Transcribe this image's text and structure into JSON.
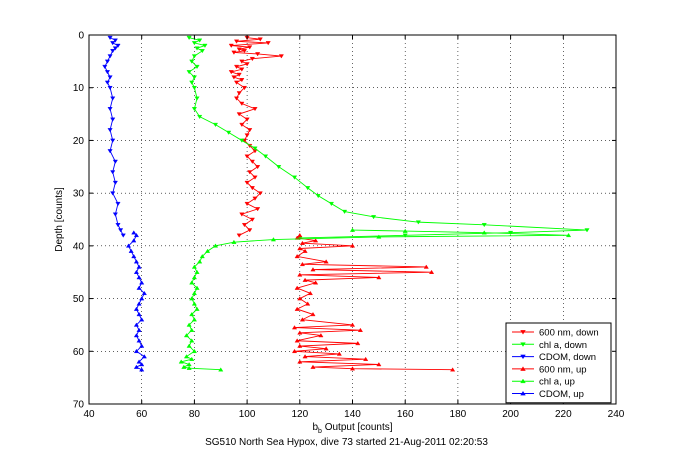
{
  "chart_data": {
    "type": "line",
    "title": "",
    "xlabel": "b",
    "xlabel_subscript": "b",
    "xlabel_suffix": " Output [counts]",
    "ylabel": "Depth [counts]",
    "caption": "SG510 North Sea Hypox, dive 73 started 21-Aug-2011 02:20:53",
    "xlim": [
      40,
      240
    ],
    "ylim": [
      0,
      70
    ],
    "y_reversed": true,
    "xticks": [
      40,
      60,
      80,
      100,
      120,
      140,
      160,
      180,
      200,
      220,
      240
    ],
    "yticks": [
      0,
      10,
      20,
      30,
      40,
      50,
      60,
      70
    ],
    "grid": "dotted",
    "legend_position": "bottom-right",
    "series": [
      {
        "name": "600 nm, down",
        "color": "#ff0000",
        "marker": "down",
        "points": [
          [
            100,
            0.5
          ],
          [
            105,
            0.8
          ],
          [
            96,
            1.2
          ],
          [
            108,
            1.5
          ],
          [
            94,
            2.0
          ],
          [
            101,
            2.3
          ],
          [
            97,
            2.7
          ],
          [
            99,
            3.0
          ],
          [
            95,
            3.3
          ],
          [
            104,
            3.6
          ],
          [
            113,
            4.0
          ],
          [
            102,
            4.5
          ],
          [
            98,
            5.0
          ],
          [
            100,
            5.5
          ],
          [
            96,
            6.0
          ],
          [
            98,
            6.5
          ],
          [
            94,
            7.0
          ],
          [
            97,
            7.5
          ],
          [
            95,
            8.0
          ],
          [
            98,
            8.5
          ],
          [
            96,
            9.0
          ],
          [
            99,
            10.0
          ],
          [
            97,
            11.0
          ],
          [
            96,
            12.0
          ],
          [
            98,
            13.0
          ],
          [
            103,
            14.0
          ],
          [
            97,
            15.0
          ],
          [
            100,
            16.0
          ],
          [
            98,
            17.0
          ],
          [
            101,
            18.0
          ],
          [
            100,
            19.0
          ],
          [
            99,
            20.0
          ],
          [
            101,
            21.0
          ],
          [
            103,
            22.0
          ],
          [
            100,
            23.0
          ],
          [
            102,
            24.0
          ],
          [
            104,
            25.0
          ],
          [
            101,
            26.0
          ],
          [
            103,
            27.0
          ],
          [
            100,
            28.0
          ],
          [
            102,
            29.0
          ],
          [
            105,
            30.0
          ],
          [
            103,
            31.0
          ],
          [
            100,
            32.0
          ],
          [
            104,
            33.0
          ],
          [
            98,
            34.0
          ],
          [
            102,
            35.0
          ],
          [
            99,
            36.0
          ],
          [
            101,
            37.0
          ],
          [
            97,
            38.0
          ]
        ]
      },
      {
        "name": "chl a, down",
        "color": "#00ff00",
        "marker": "down",
        "points": [
          [
            78,
            0.5
          ],
          [
            82,
            1.0
          ],
          [
            80,
            1.5
          ],
          [
            84,
            2.0
          ],
          [
            81,
            2.5
          ],
          [
            83,
            3.0
          ],
          [
            80,
            4.0
          ],
          [
            79,
            5.0
          ],
          [
            81,
            6.0
          ],
          [
            78,
            7.0
          ],
          [
            80,
            8.0
          ],
          [
            79,
            9.0
          ],
          [
            80,
            10.0
          ],
          [
            81,
            12.0
          ],
          [
            80,
            14.0
          ],
          [
            82,
            15.5
          ],
          [
            88,
            17.0
          ],
          [
            93,
            18.5
          ],
          [
            98,
            20.0
          ],
          [
            103,
            21.5
          ],
          [
            107,
            23.0
          ],
          [
            112,
            25.0
          ],
          [
            118,
            27.0
          ],
          [
            123,
            29.0
          ],
          [
            127,
            30.5
          ],
          [
            132,
            32.0
          ],
          [
            137,
            33.5
          ],
          [
            148,
            34.5
          ],
          [
            165,
            35.5
          ],
          [
            190,
            36.0
          ],
          [
            229,
            37.0
          ],
          [
            200,
            37.5
          ],
          [
            160,
            38.0
          ],
          [
            120,
            38.5
          ]
        ]
      },
      {
        "name": "CDOM, down",
        "color": "#0000ff",
        "marker": "down",
        "points": [
          [
            48,
            0.5
          ],
          [
            50,
            1.0
          ],
          [
            49,
            1.5
          ],
          [
            51,
            2.0
          ],
          [
            50,
            2.5
          ],
          [
            49,
            3.0
          ],
          [
            48,
            4.0
          ],
          [
            47,
            5.0
          ],
          [
            46,
            6.0
          ],
          [
            47,
            7.0
          ],
          [
            48,
            8.0
          ],
          [
            47,
            9.0
          ],
          [
            48,
            10.0
          ],
          [
            49,
            12.0
          ],
          [
            48,
            14.0
          ],
          [
            49,
            16.0
          ],
          [
            48,
            18.0
          ],
          [
            49,
            20.0
          ],
          [
            48,
            22.0
          ],
          [
            50,
            24.0
          ],
          [
            49,
            26.0
          ],
          [
            50,
            28.0
          ],
          [
            49,
            30.0
          ],
          [
            51,
            32.0
          ],
          [
            50,
            34.0
          ],
          [
            51,
            36.0
          ],
          [
            52,
            37.0
          ],
          [
            53,
            38.0
          ]
        ]
      },
      {
        "name": "600 nm, up",
        "color": "#ff0000",
        "marker": "up",
        "points": [
          [
            178,
            63.5
          ],
          [
            140,
            63.3
          ],
          [
            125,
            63.0
          ],
          [
            150,
            62.5
          ],
          [
            120,
            62.0
          ],
          [
            145,
            61.5
          ],
          [
            122,
            61.0
          ],
          [
            135,
            60.5
          ],
          [
            118,
            60.0
          ],
          [
            130,
            59.5
          ],
          [
            120,
            59.0
          ],
          [
            142,
            58.5
          ],
          [
            119,
            58.0
          ],
          [
            128,
            57.0
          ],
          [
            120,
            56.5
          ],
          [
            143,
            56.0
          ],
          [
            118,
            55.5
          ],
          [
            140,
            55.0
          ],
          [
            121,
            54.0
          ],
          [
            125,
            53.0
          ],
          [
            119,
            52.0
          ],
          [
            123,
            51.0
          ],
          [
            120,
            50.0
          ],
          [
            124,
            49.0
          ],
          [
            119,
            48.0
          ],
          [
            126,
            47.0
          ],
          [
            122,
            46.5
          ],
          [
            150,
            46.0
          ],
          [
            120,
            45.5
          ],
          [
            170,
            45.0
          ],
          [
            125,
            44.5
          ],
          [
            168,
            44.0
          ],
          [
            121,
            43.5
          ],
          [
            130,
            43.0
          ],
          [
            119,
            42.0
          ],
          [
            122,
            41.0
          ],
          [
            120,
            40.5
          ],
          [
            140,
            40.0
          ],
          [
            121,
            39.5
          ],
          [
            126,
            39.0
          ],
          [
            119,
            38.5
          ],
          [
            120,
            38.0
          ]
        ]
      },
      {
        "name": "chl a, up",
        "color": "#00ff00",
        "marker": "up",
        "points": [
          [
            90,
            63.5
          ],
          [
            78,
            63.2
          ],
          [
            76,
            63.0
          ],
          [
            78,
            62.5
          ],
          [
            75,
            62.0
          ],
          [
            79,
            61.5
          ],
          [
            77,
            61.0
          ],
          [
            80,
            60.0
          ],
          [
            78,
            59.0
          ],
          [
            79,
            58.0
          ],
          [
            77,
            57.0
          ],
          [
            79,
            56.0
          ],
          [
            78,
            55.0
          ],
          [
            80,
            54.0
          ],
          [
            79,
            53.0
          ],
          [
            81,
            52.0
          ],
          [
            80,
            51.0
          ],
          [
            79,
            50.0
          ],
          [
            80,
            49.0
          ],
          [
            81,
            48.0
          ],
          [
            79,
            47.0
          ],
          [
            80,
            46.0
          ],
          [
            81,
            45.0
          ],
          [
            80,
            44.0
          ],
          [
            82,
            43.0
          ],
          [
            83,
            42.0
          ],
          [
            85,
            41.0
          ],
          [
            88,
            40.0
          ],
          [
            95,
            39.3
          ],
          [
            110,
            38.8
          ],
          [
            150,
            38.3
          ],
          [
            222,
            38.0
          ],
          [
            190,
            37.5
          ],
          [
            160,
            37.2
          ],
          [
            140,
            37.0
          ]
        ]
      },
      {
        "name": "CDOM, up",
        "color": "#0000ff",
        "marker": "up",
        "points": [
          [
            60,
            63.5
          ],
          [
            58,
            63.0
          ],
          [
            60,
            62.5
          ],
          [
            59,
            62.0
          ],
          [
            61,
            61.0
          ],
          [
            58,
            60.0
          ],
          [
            60,
            59.0
          ],
          [
            59,
            58.0
          ],
          [
            58,
            57.0
          ],
          [
            59,
            56.0
          ],
          [
            58,
            55.0
          ],
          [
            60,
            54.0
          ],
          [
            59,
            53.0
          ],
          [
            58,
            52.0
          ],
          [
            59,
            51.0
          ],
          [
            60,
            50.0
          ],
          [
            61,
            49.0
          ],
          [
            59,
            48.0
          ],
          [
            60,
            47.0
          ],
          [
            59,
            46.0
          ],
          [
            58,
            45.0
          ],
          [
            59,
            44.0
          ],
          [
            58,
            43.0
          ],
          [
            57,
            42.0
          ],
          [
            56,
            41.0
          ],
          [
            55,
            40.0
          ],
          [
            57,
            39.0
          ],
          [
            58,
            38.0
          ],
          [
            57,
            37.5
          ]
        ]
      }
    ]
  }
}
